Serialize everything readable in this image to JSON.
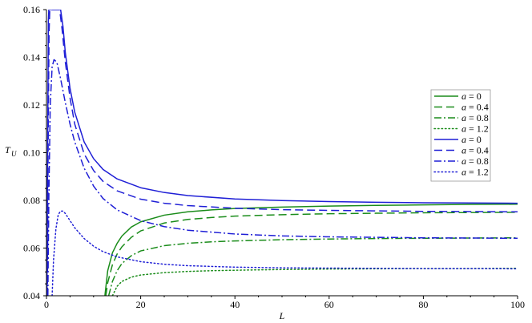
{
  "chart_data": {
    "type": "line",
    "title": "",
    "xlabel": "L",
    "ylabel": "T",
    "ylabel_subscript": "U",
    "xlim": [
      0,
      100
    ],
    "ylim": [
      0.04,
      0.16
    ],
    "xticks": [
      0,
      20,
      40,
      60,
      80,
      100
    ],
    "yticks": [
      0.04,
      0.06,
      0.08,
      0.1,
      0.12,
      0.14,
      0.16
    ],
    "xtick_labels": [
      "0",
      "20",
      "40",
      "60",
      "80",
      "100"
    ],
    "ytick_labels": [
      "0.04",
      "0.06",
      "0.08",
      "0.10",
      "0.12",
      "0.14",
      "0.16"
    ],
    "grid": false,
    "legend_position": "right",
    "series": [
      {
        "name": "a = 0",
        "color": "#1a8c1a",
        "dash": "solid",
        "x": [
          12.4,
          13,
          14,
          15,
          16,
          18,
          20,
          25,
          30,
          35,
          40,
          50,
          60,
          70,
          80,
          90,
          100
        ],
        "y": [
          0.04,
          0.0505,
          0.058,
          0.062,
          0.065,
          0.0688,
          0.071,
          0.0738,
          0.0752,
          0.076,
          0.0766,
          0.0772,
          0.0776,
          0.0779,
          0.0781,
          0.0783,
          0.0784
        ]
      },
      {
        "name": "a = 0.4",
        "color": "#1a8c1a",
        "dash": "dash",
        "x": [
          12.6,
          13,
          14,
          15,
          16,
          18,
          20,
          25,
          30,
          35,
          40,
          50,
          60,
          70,
          80,
          90,
          100
        ],
        "y": [
          0.04,
          0.0455,
          0.053,
          0.0575,
          0.0605,
          0.0645,
          0.0672,
          0.0705,
          0.072,
          0.0728,
          0.0734,
          0.074,
          0.0744,
          0.0746,
          0.0748,
          0.0749,
          0.075
        ]
      },
      {
        "name": "a = 0.8",
        "color": "#1a8c1a",
        "dash": "dashdot",
        "x": [
          13.2,
          14,
          15,
          16,
          18,
          20,
          25,
          30,
          35,
          40,
          50,
          60,
          70,
          80,
          90,
          100
        ],
        "y": [
          0.04,
          0.046,
          0.0505,
          0.0535,
          0.0568,
          0.0588,
          0.061,
          0.062,
          0.0626,
          0.063,
          0.0635,
          0.0638,
          0.064,
          0.0641,
          0.0642,
          0.0643
        ]
      },
      {
        "name": "a = 1.2",
        "color": "#1a8c1a",
        "dash": "dot",
        "x": [
          14.0,
          15,
          16,
          18,
          20,
          25,
          30,
          35,
          40,
          50,
          60,
          70,
          80,
          90,
          100
        ],
        "y": [
          0.04,
          0.044,
          0.046,
          0.0478,
          0.0487,
          0.0497,
          0.0502,
          0.0505,
          0.0507,
          0.051,
          0.0512,
          0.0513,
          0.0514,
          0.0514,
          0.0515
        ]
      },
      {
        "name": "a = 0",
        "color": "#1f1fd6",
        "dash": "solid",
        "x": [
          0.1,
          0.25,
          0.4,
          0.5,
          3.0,
          3.5,
          4,
          5,
          6,
          8,
          10,
          12,
          15,
          20,
          25,
          30,
          40,
          50,
          60,
          70,
          80,
          90,
          100
        ],
        "y": [
          0.04,
          0.1,
          0.155,
          0.16,
          0.16,
          0.153,
          0.142,
          0.127,
          0.117,
          0.1045,
          0.0975,
          0.093,
          0.089,
          0.0853,
          0.0833,
          0.082,
          0.0806,
          0.0799,
          0.0795,
          0.0792,
          0.079,
          0.0789,
          0.0788
        ]
      },
      {
        "name": "a = 0.4",
        "color": "#1f1fd6",
        "dash": "dash",
        "x": [
          0.2,
          0.35,
          0.55,
          0.7,
          2.8,
          3.3,
          4,
          5,
          6,
          8,
          10,
          12,
          15,
          20,
          25,
          30,
          40,
          50,
          60,
          70,
          80,
          90,
          100
        ],
        "y": [
          0.04,
          0.1,
          0.15,
          0.16,
          0.16,
          0.152,
          0.138,
          0.123,
          0.112,
          0.0995,
          0.0925,
          0.088,
          0.084,
          0.0805,
          0.0788,
          0.0778,
          0.0767,
          0.0761,
          0.0758,
          0.0756,
          0.0754,
          0.0753,
          0.0752
        ]
      },
      {
        "name": "a = 0.8",
        "color": "#1f1fd6",
        "dash": "dashdot",
        "x": [
          0.3,
          0.5,
          0.8,
          1.2,
          1.6,
          2.2,
          3,
          4,
          5,
          6,
          8,
          10,
          12,
          15,
          20,
          25,
          30,
          40,
          50,
          60,
          70,
          80,
          90,
          100
        ],
        "y": [
          0.04,
          0.08,
          0.12,
          0.136,
          0.139,
          0.138,
          0.131,
          0.121,
          0.112,
          0.1045,
          0.0935,
          0.086,
          0.0808,
          0.076,
          0.0715,
          0.069,
          0.0675,
          0.0659,
          0.0651,
          0.0647,
          0.0645,
          0.0643,
          0.0642,
          0.0641
        ]
      },
      {
        "name": "a = 1.2",
        "color": "#1f1fd6",
        "dash": "dot",
        "x": [
          1.2,
          1.5,
          2,
          2.5,
          3,
          3.5,
          4,
          5,
          6,
          8,
          10,
          12,
          15,
          20,
          25,
          30,
          40,
          50,
          60,
          70,
          80,
          90,
          100
        ],
        "y": [
          0.04,
          0.055,
          0.068,
          0.074,
          0.0755,
          0.0755,
          0.0745,
          0.0715,
          0.0685,
          0.064,
          0.0608,
          0.0585,
          0.0563,
          0.0543,
          0.0532,
          0.0526,
          0.052,
          0.0517,
          0.0516,
          0.0515,
          0.0514,
          0.0514,
          0.0513
        ]
      }
    ],
    "legend": [
      {
        "var": "a",
        "eq": " = ",
        "val": "0"
      },
      {
        "var": "a",
        "eq": " = ",
        "val": "0.4"
      },
      {
        "var": "a",
        "eq": " = ",
        "val": "0.8"
      },
      {
        "var": "a",
        "eq": " = ",
        "val": "1.2"
      },
      {
        "var": "a",
        "eq": " = ",
        "val": "0"
      },
      {
        "var": "a",
        "eq": " = ",
        "val": "0.4"
      },
      {
        "var": "a",
        "eq": " = ",
        "val": "0.8"
      },
      {
        "var": "a",
        "eq": " = ",
        "val": "1.2"
      }
    ]
  }
}
